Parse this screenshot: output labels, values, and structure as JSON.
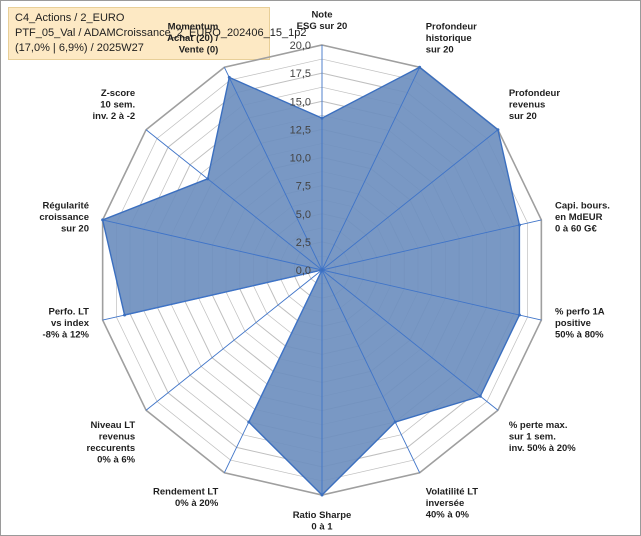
{
  "header": {
    "line1": "C4_Actions / 2_EURO",
    "line2": "PTF_05_Val / ADAMCroissance_2_EURO_202406_15_1p2",
    "line3": "(17,0% | 6,9%) / 2025W27"
  },
  "chart_data": {
    "type": "radar",
    "rmax": 20,
    "tick_values": [
      0,
      2.5,
      5,
      7.5,
      10,
      12.5,
      15,
      17.5,
      20
    ],
    "tick_labels": [
      "0,0",
      "2,5",
      "5,0",
      "7,5",
      "10,0",
      "12,5",
      "15,0",
      "17,5",
      "20,0"
    ],
    "colors": {
      "fill": "#6e8fbf",
      "line": "#3b6fbf",
      "grid": "#bfbfbf",
      "spoke": "#3f74c8"
    },
    "axes": [
      {
        "label": [
          "Note",
          "ESG sur 20"
        ],
        "value": 13.5
      },
      {
        "label": [
          "Profondeur",
          "historique",
          "sur 20"
        ],
        "value": 20
      },
      {
        "label": [
          "Profondeur",
          "revenus",
          "sur 20"
        ],
        "value": 20
      },
      {
        "label": [
          "Capi. bours.",
          "en MdEUR",
          "0 à 60 G€"
        ],
        "value": 18
      },
      {
        "label": [
          "% perfo 1A",
          "positive",
          "50% à 80%"
        ],
        "value": 18
      },
      {
        "label": [
          "% perte max.",
          "sur 1 sem.",
          "inv. 50% à 20%"
        ],
        "value": 18
      },
      {
        "label": [
          "Volatilité LT",
          "inversée",
          "40% à 0%"
        ],
        "value": 15
      },
      {
        "label": [
          "Ratio Sharpe",
          "0 à 1"
        ],
        "value": 20
      },
      {
        "label": [
          "Rendement LT",
          "0% à 20%"
        ],
        "value": 15
      },
      {
        "label": [
          "Niveau LT",
          "revenus",
          "reccurents",
          "0% à 6%"
        ],
        "value": 0
      },
      {
        "label": [
          "Perfo. LT",
          "vs index",
          "-8% à 12%"
        ],
        "value": 18
      },
      {
        "label": [
          "Régularité",
          "croissance",
          "sur 20"
        ],
        "value": 20
      },
      {
        "label": [
          "Z-score",
          "10 sem.",
          "inv. 2 à -2"
        ],
        "value": 13
      },
      {
        "label": [
          "Momentum",
          "Achat (20) /",
          "Vente (0)"
        ],
        "value": 19
      }
    ]
  }
}
